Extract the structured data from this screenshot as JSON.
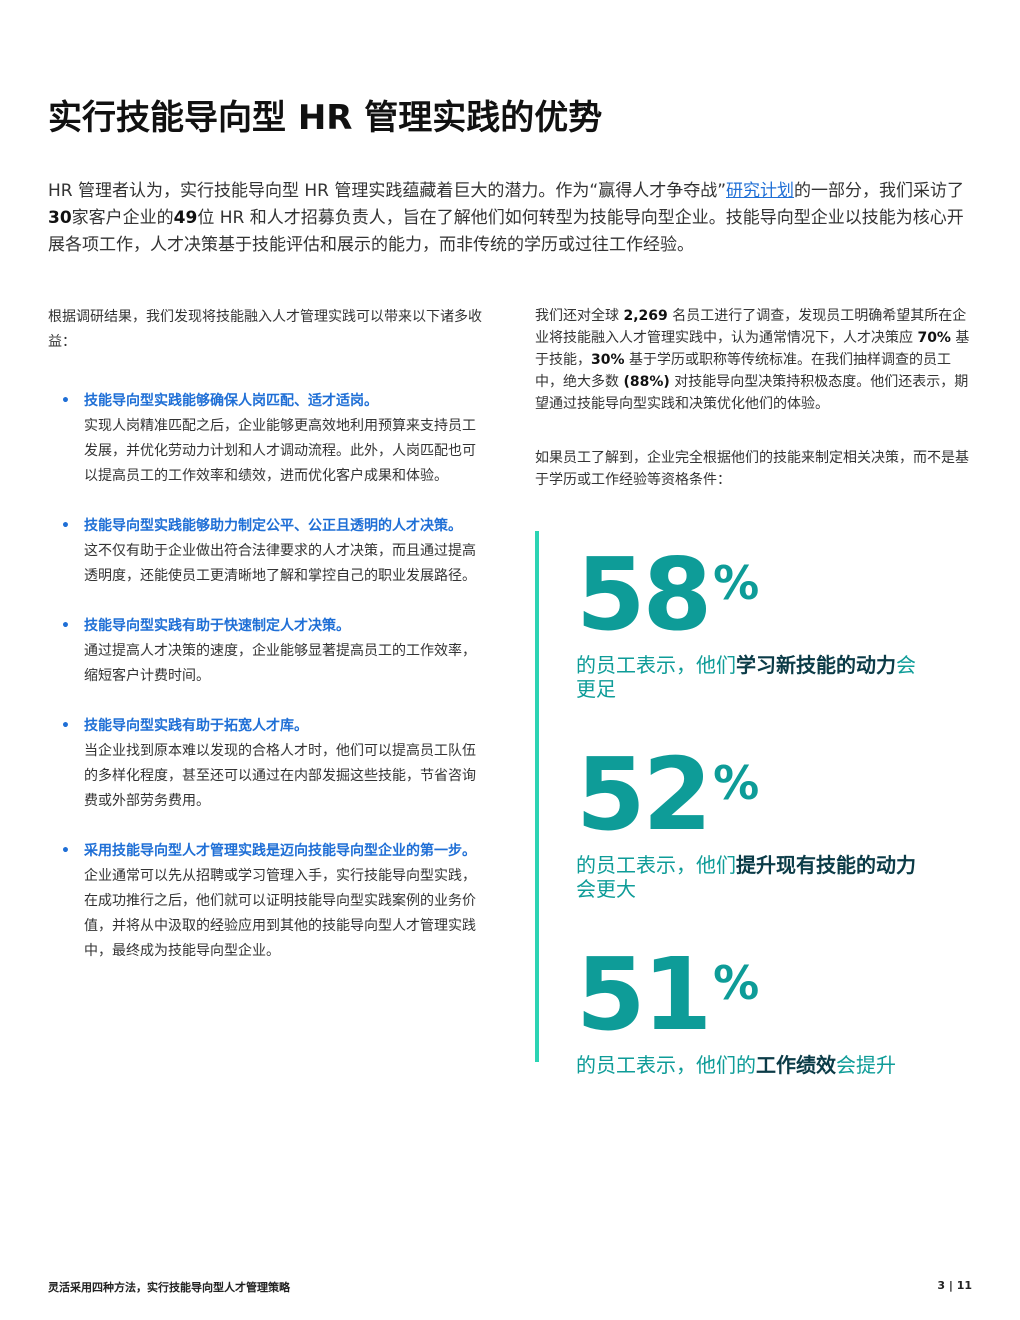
{
  "header": {
    "title": "实行技能导向型 HR 管理实践的优势"
  },
  "intro": [
    {
      "text": "HR 管理者认为，实行技能导向型 HR 管理实践蕴藏着巨大的潜力。作为“赢得人才争夺战”"
    },
    {
      "text": "研究计划",
      "style": "link"
    },
    {
      "text": "的一部分，我们采访了"
    },
    {
      "text": "30",
      "style": "bold"
    },
    {
      "text": "家客户企业的"
    },
    {
      "text": "49",
      "style": "bold"
    },
    {
      "text": "位 HR 和人才招募负责人，旨在了解他们如何转型为技能导向型企业。技能导向型企业以技能为核心开展各项工作，人才决策基于技能评估和展示的能力，而非传统的学历或过往工作经验。"
    }
  ],
  "left": {
    "lead": "根据调研结果，我们发现将技能融入人才管理实践可以带来以下诸多收益：",
    "items": [
      {
        "heading": "技能导向型实践能够确保人岗匹配、适才适岗。",
        "body": "实现人岗精准匹配之后，企业能够更高效地利用预算来支持员工发展，并优化劳动力计划和人才调动流程。此外，人岗匹配也可以提高员工的工作效率和绩效，进而优化客户成果和体验。"
      },
      {
        "heading": "技能导向型实践能够助力制定公平、公正且透明的人才决策。",
        "body": "这不仅有助于企业做出符合法律要求的人才决策，而且通过提高透明度，还能使员工更清晰地了解和掌控自己的职业发展路径。"
      },
      {
        "heading": "技能导向型实践有助于快速制定人才决策。",
        "body": "通过提高人才决策的速度，企业能够显著提高员工的工作效率，缩短客户计费时间。"
      },
      {
        "heading": "技能导向型实践有助于拓宽人才库。",
        "body": "当企业找到原本难以发现的合格人才时，他们可以提高员工队伍的多样化程度，甚至还可以通过在内部发掘这些技能，节省咨询费或外部劳务费用。"
      },
      {
        "heading": "采用技能导向型人才管理实践是迈向技能导向型企业的第一步。",
        "body": "企业通常可以先从招聘或学习管理入手，实行技能导向型实践，在成功推行之后，他们就可以证明技能导向型实践案例的业务价值，并将从中汲取的经验应用到其他的技能导向型人才管理实践中，最终成为技能导向型企业。"
      }
    ]
  },
  "right": {
    "survey": [
      {
        "text": "我们还对全球 "
      },
      {
        "text": "2,269",
        "style": "bold"
      },
      {
        "text": " 名员工进行了调查，发现员工明确希望其所在企业将技能融入人才管理实践中，认为通常情况下，人才决策应 "
      },
      {
        "text": "70%",
        "style": "bold"
      },
      {
        "text": " 基于技能，"
      },
      {
        "text": "30%",
        "style": "bold"
      },
      {
        "text": " 基于学历或职称等传统标准。在我们抽样调查的员工中，绝大多数 "
      },
      {
        "text": "(88%)",
        "style": "bold"
      },
      {
        "text": " 对技能导向型决策持积极态度。他们还表示，期望通过技能导向型实践和决策优化他们的体验。"
      }
    ],
    "question": "如果员工了解到，企业完全根据他们的技能来制定相关决策，而不是基于学历或工作经验等资格条件：",
    "stats": [
      {
        "number": "58",
        "unit": "%",
        "caption": [
          {
            "text": "的员工表示，他们"
          },
          {
            "text": "学习新技能的动力",
            "style": "strong"
          },
          {
            "text": "会更足"
          }
        ]
      },
      {
        "number": "52",
        "unit": "%",
        "caption": [
          {
            "text": "的员工表示，他们"
          },
          {
            "text": "提升现有技能的动力",
            "style": "strong"
          },
          {
            "text": "会更大"
          }
        ]
      },
      {
        "number": "51",
        "unit": "%",
        "caption": [
          {
            "text": "的员工表示，他们的"
          },
          {
            "text": "工作绩效",
            "style": "strong"
          },
          {
            "text": "会提升"
          }
        ]
      }
    ]
  },
  "footer": {
    "title": "灵活采用四种方法，实行技能导向型人才管理策略",
    "page": "3 | 11"
  }
}
